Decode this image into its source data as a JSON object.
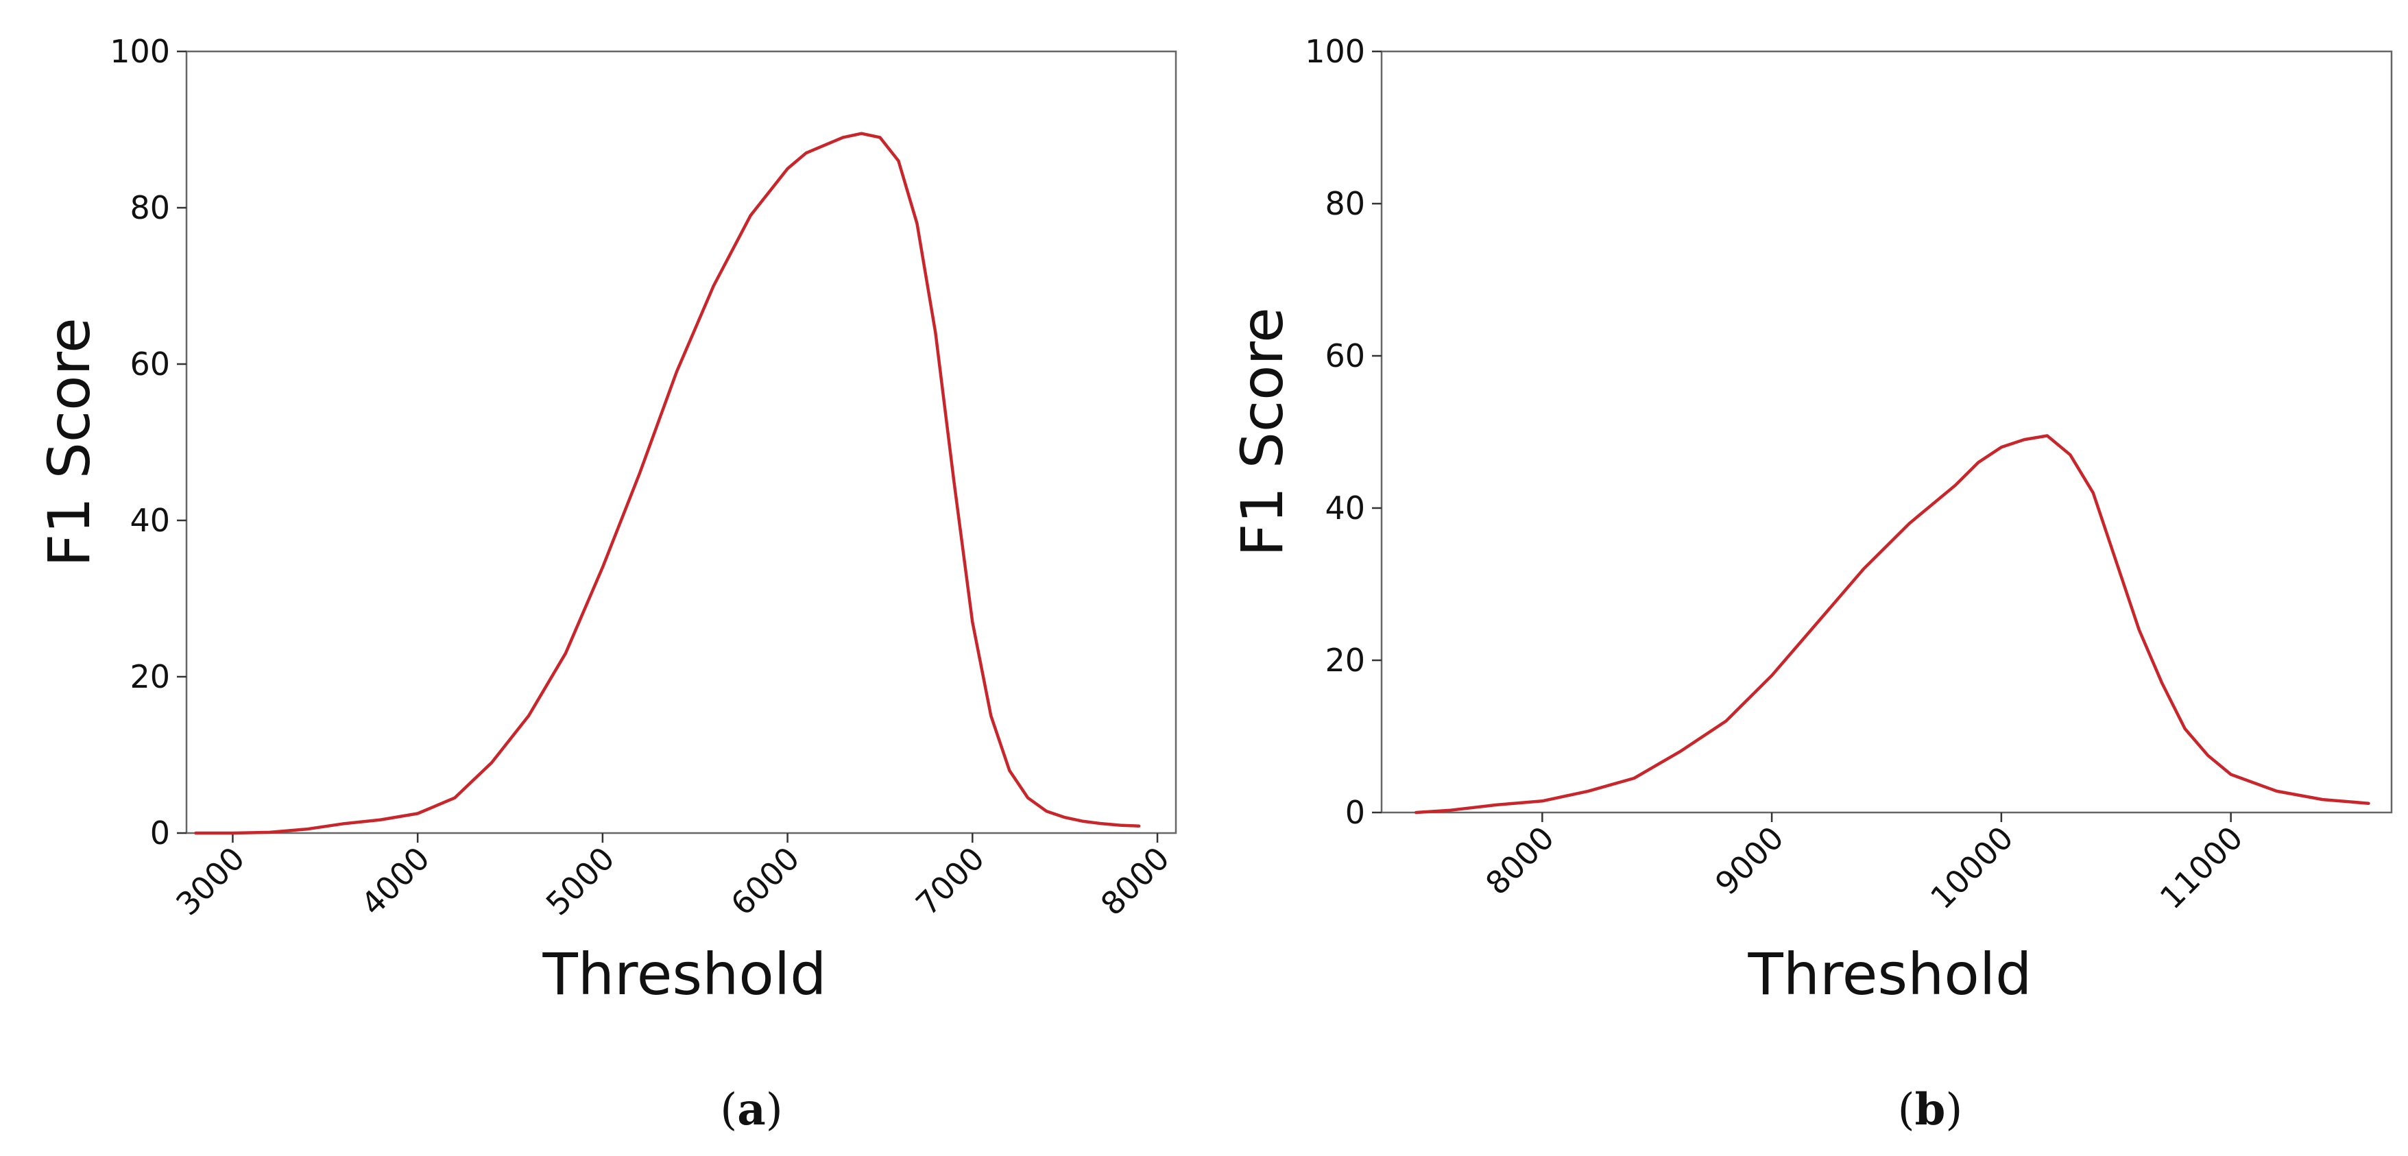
{
  "colors": {
    "line": "#c8262b"
  },
  "chart_data": [
    {
      "type": "line",
      "caption_open": "(",
      "caption_letter": "a",
      "caption_close": ")",
      "xlabel": "Threshold",
      "ylabel": "F1 Score",
      "xlim": [
        2750,
        8100
      ],
      "ylim": [
        0,
        100
      ],
      "xticks": [
        3000,
        4000,
        5000,
        6000,
        7000,
        8000
      ],
      "xtick_labels": [
        "3000",
        "4000",
        "5000",
        "6000",
        "7000",
        "8000"
      ],
      "yticks": [
        0,
        20,
        40,
        60,
        80,
        100
      ],
      "ytick_labels": [
        "0",
        "20",
        "40",
        "60",
        "80",
        "100"
      ],
      "grid": false,
      "series": [
        {
          "x": [
            2800,
            3000,
            3200,
            3400,
            3600,
            3800,
            4000,
            4200,
            4400,
            4600,
            4800,
            5000,
            5200,
            5400,
            5600,
            5800,
            6000,
            6100,
            6200,
            6300,
            6400,
            6500,
            6600,
            6700,
            6800,
            6900,
            7000,
            7100,
            7200,
            7300,
            7400,
            7500,
            7600,
            7700,
            7800,
            7900
          ],
          "y": [
            0,
            0,
            0.1,
            0.5,
            1.2,
            1.7,
            2.5,
            4.5,
            9,
            15,
            23,
            34,
            46,
            59,
            70,
            79,
            85,
            87,
            88,
            89,
            89.5,
            89,
            86,
            78,
            64,
            45,
            27,
            15,
            8,
            4.5,
            2.8,
            2,
            1.5,
            1.2,
            1,
            0.9
          ]
        }
      ]
    },
    {
      "type": "line",
      "caption_open": "(",
      "caption_letter": "b",
      "caption_close": ")",
      "xlabel": "Threshold",
      "ylabel": "F1 Score",
      "xlim": [
        7300,
        11700
      ],
      "ylim": [
        0,
        100
      ],
      "xticks": [
        8000,
        9000,
        10000,
        11000
      ],
      "xtick_labels": [
        "8000",
        "9000",
        "10000",
        "11000"
      ],
      "yticks": [
        0,
        20,
        40,
        60,
        80,
        100
      ],
      "ytick_labels": [
        "0",
        "20",
        "40",
        "60",
        "80",
        "100"
      ],
      "grid": false,
      "series": [
        {
          "x": [
            7450,
            7600,
            7800,
            8000,
            8200,
            8400,
            8600,
            8800,
            9000,
            9200,
            9400,
            9600,
            9800,
            9900,
            10000,
            10100,
            10200,
            10300,
            10400,
            10500,
            10600,
            10700,
            10800,
            10900,
            11000,
            11200,
            11400,
            11600
          ],
          "y": [
            0,
            0.3,
            1,
            1.5,
            2.8,
            4.5,
            8,
            12,
            18,
            25,
            32,
            38,
            43,
            46,
            48,
            49,
            49.5,
            47,
            42,
            33,
            24,
            17,
            11,
            7.5,
            5,
            2.8,
            1.7,
            1.2
          ]
        }
      ]
    }
  ]
}
